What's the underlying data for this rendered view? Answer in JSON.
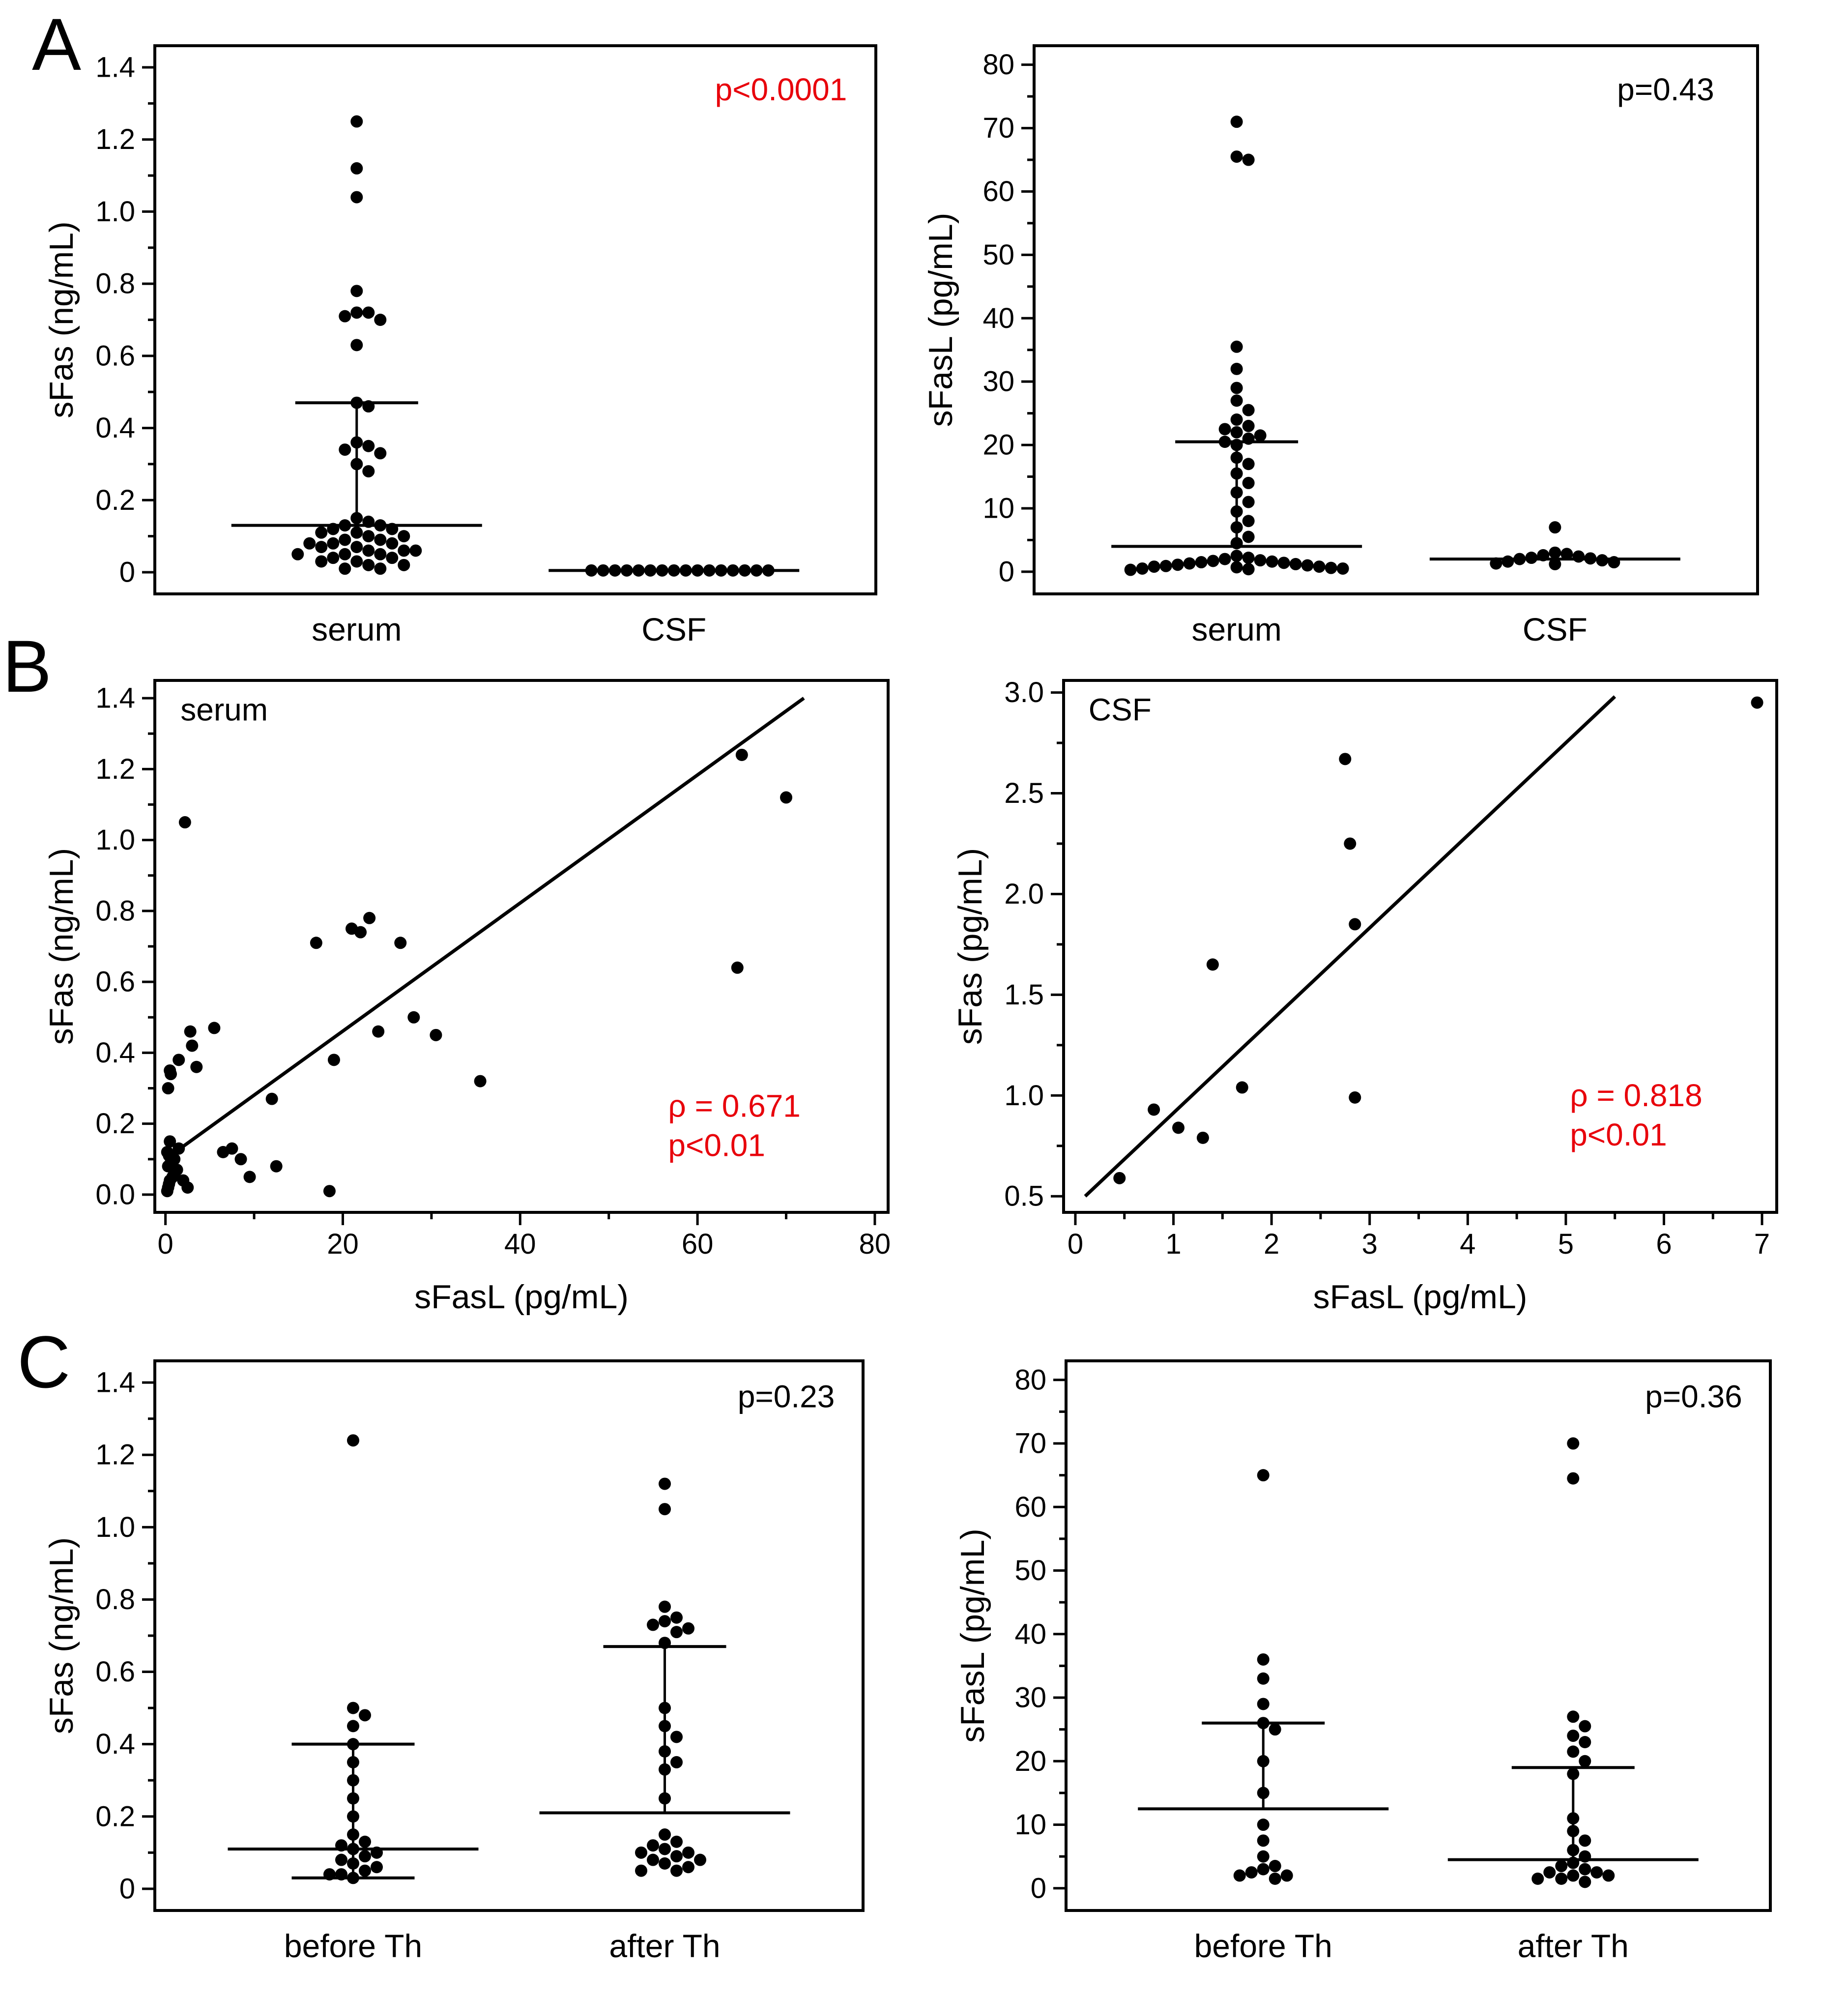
{
  "panel_labels": [
    {
      "text": "A"
    },
    {
      "text": "B"
    },
    {
      "text": "C"
    }
  ],
  "colors": {
    "ink": "#000000",
    "accent_red": "#e8000b"
  },
  "chart_data": [
    {
      "id": "a_left",
      "type": "dot",
      "ylabel": "sFas (ng/mL)",
      "ylim": [
        -0.06,
        1.46
      ],
      "yticks": [
        "0",
        "0.2",
        "0.4",
        "0.6",
        "0.8",
        "1.0",
        "1.2",
        "1.4"
      ],
      "categories": [
        "serum",
        "CSF"
      ],
      "annotation": {
        "lines": [
          "p<0.0001"
        ],
        "color": "#e8000b",
        "fx": 0.96,
        "fy": 0.08,
        "anchor": "end"
      },
      "groups": [
        {
          "name": "serum",
          "values": [
            1.25,
            1.12,
            1.04,
            0.78,
            0.72,
            0.72,
            0.71,
            0.7,
            0.63,
            0.47,
            0.46,
            0.36,
            0.35,
            0.34,
            0.33,
            0.3,
            0.28,
            0.15,
            0.14,
            0.13,
            0.13,
            0.12,
            0.12,
            0.11,
            0.11,
            0.1,
            0.1,
            0.09,
            0.09,
            0.08,
            0.08,
            0.08,
            0.07,
            0.07,
            0.06,
            0.06,
            0.06,
            0.05,
            0.05,
            0.05,
            0.04,
            0.04,
            0.03,
            0.03,
            0.02,
            0.02,
            0.01,
            0.01
          ],
          "mean": 0.13,
          "hi": 0.47,
          "lo": null
        },
        {
          "name": "CSF",
          "values": [
            0.005,
            0.005,
            0.005,
            0.005,
            0.005,
            0.005,
            0.005,
            0.005,
            0.005,
            0.005,
            0.005,
            0.005,
            0.005,
            0.005,
            0.005,
            0.005
          ],
          "mean": 0.005,
          "hi": null,
          "lo": null
        }
      ]
    },
    {
      "id": "a_right",
      "type": "dot",
      "ylabel": "sFasL (pg/mL)",
      "ylim": [
        -3.5,
        83
      ],
      "yticks": [
        "0",
        "10",
        "20",
        "30",
        "40",
        "50",
        "60",
        "70",
        "80"
      ],
      "categories": [
        "serum",
        "CSF"
      ],
      "annotation": {
        "lines": [
          "p=0.43"
        ],
        "color": "#000000",
        "fx": 0.94,
        "fy": 0.08,
        "anchor": "end"
      },
      "groups": [
        {
          "name": "serum",
          "values": [
            71,
            65.5,
            65,
            35.5,
            32,
            29,
            27,
            25.5,
            24,
            23,
            22.5,
            22,
            21.5,
            21,
            20.5,
            20,
            18,
            17,
            15.5,
            14,
            12.5,
            11,
            9.5,
            8,
            7,
            5.5,
            4.5,
            2.5,
            2.2,
            2,
            1.8,
            1.7,
            1.6,
            1.5,
            1.4,
            1.3,
            1.2,
            1.1,
            1,
            0.9,
            0.8,
            0.8,
            0.7,
            0.6,
            0.5,
            0.5,
            0.4,
            0.3
          ],
          "mean": 4,
          "hi": 20.5,
          "lo": null
        },
        {
          "name": "CSF",
          "values": [
            7,
            3,
            2.8,
            2.6,
            2.4,
            2.2,
            2.1,
            2,
            1.8,
            1.6,
            1.5,
            1.3,
            1.2
          ],
          "mean": 2,
          "hi": null,
          "lo": null
        }
      ]
    },
    {
      "id": "b_left",
      "type": "scatter",
      "inlabel": {
        "text": "serum",
        "fx": 0.035,
        "fy": 0.055
      },
      "ylabel": "sFas (ng/mL)",
      "xlabel": "sFasL (pg/mL)",
      "ylim": [
        -0.05,
        1.45
      ],
      "xlim": [
        -1.2,
        81.5
      ],
      "yticks": [
        "0.0",
        "0.2",
        "0.4",
        "0.6",
        "0.8",
        "1.0",
        "1.2",
        "1.4"
      ],
      "xticks": [
        "0",
        "20",
        "40",
        "60",
        "80"
      ],
      "annotation": {
        "lines": [
          "ρ = 0.671",
          "p<0.01"
        ],
        "color": "#e8000b",
        "fx": 0.7,
        "fy": 0.8,
        "anchor": "start"
      },
      "points": [
        [
          0.2,
          0.01
        ],
        [
          0.3,
          0.02
        ],
        [
          0.4,
          0.03
        ],
        [
          0.5,
          0.04
        ],
        [
          0.8,
          0.05
        ],
        [
          1,
          0.06
        ],
        [
          1.3,
          0.07
        ],
        [
          0.3,
          0.08
        ],
        [
          0.6,
          0.09
        ],
        [
          1,
          0.1
        ],
        [
          0.4,
          0.11
        ],
        [
          0.2,
          0.12
        ],
        [
          1.5,
          0.13
        ],
        [
          0.5,
          0.15
        ],
        [
          2,
          0.04
        ],
        [
          2.5,
          0.02
        ],
        [
          0.3,
          0.3
        ],
        [
          0.5,
          0.35
        ],
        [
          0.6,
          0.34
        ],
        [
          1.5,
          0.38
        ],
        [
          2.2,
          1.05
        ],
        [
          3,
          0.42
        ],
        [
          3.5,
          0.36
        ],
        [
          2.8,
          0.46
        ],
        [
          5.5,
          0.47
        ],
        [
          6.5,
          0.12
        ],
        [
          7.5,
          0.13
        ],
        [
          8.5,
          0.1
        ],
        [
          9.5,
          0.05
        ],
        [
          12,
          0.27
        ],
        [
          12.5,
          0.08
        ],
        [
          17,
          0.71
        ],
        [
          18.5,
          0.01
        ],
        [
          19,
          0.38
        ],
        [
          21,
          0.75
        ],
        [
          22,
          0.74
        ],
        [
          23,
          0.78
        ],
        [
          24,
          0.46
        ],
        [
          26.5,
          0.71
        ],
        [
          28,
          0.5
        ],
        [
          30.5,
          0.45
        ],
        [
          35.5,
          0.32
        ],
        [
          64.5,
          0.64
        ],
        [
          65,
          1.24
        ],
        [
          70,
          1.12
        ]
      ],
      "regression": {
        "x1": 0,
        "y1": 0.1,
        "x2": 72,
        "y2": 1.4
      }
    },
    {
      "id": "b_right",
      "type": "scatter",
      "inlabel": {
        "text": "CSF",
        "fx": 0.035,
        "fy": 0.055
      },
      "ylabel": "sFas (pg/mL)",
      "xlabel": "sFasL (pg/mL)",
      "ylim": [
        0.42,
        3.06
      ],
      "xlim": [
        -0.12,
        7.15
      ],
      "yticks": [
        "0.5",
        "1.0",
        "1.5",
        "2.0",
        "2.5",
        "3.0"
      ],
      "xticks": [
        "0",
        "1",
        "2",
        "3",
        "4",
        "5",
        "6",
        "7"
      ],
      "annotation": {
        "lines": [
          "ρ = 0.818",
          "p<0.01"
        ],
        "color": "#e8000b",
        "fx": 0.71,
        "fy": 0.78,
        "anchor": "start"
      },
      "points": [
        [
          0.45,
          0.59
        ],
        [
          0.8,
          0.93
        ],
        [
          1.05,
          0.84
        ],
        [
          1.3,
          0.79
        ],
        [
          1.4,
          1.65
        ],
        [
          1.7,
          1.04
        ],
        [
          2.75,
          2.67
        ],
        [
          2.8,
          2.25
        ],
        [
          2.85,
          1.85
        ],
        [
          2.85,
          0.99
        ],
        [
          6.95,
          2.95
        ]
      ],
      "regression": {
        "x1": 0.1,
        "y1": 0.5,
        "x2": 5.5,
        "y2": 2.98
      }
    },
    {
      "id": "c_left",
      "type": "dot",
      "ylabel": "sFas (ng/mL)",
      "ylim": [
        -0.06,
        1.46
      ],
      "yticks": [
        "0",
        "0.2",
        "0.4",
        "0.6",
        "0.8",
        "1.0",
        "1.2",
        "1.4"
      ],
      "categories": [
        "before Th",
        "after Th"
      ],
      "annotation": {
        "lines": [
          "p=0.23"
        ],
        "color": "#000000",
        "fx": 0.96,
        "fy": 0.065,
        "anchor": "end"
      },
      "groups": [
        {
          "name": "before Th",
          "values": [
            1.24,
            0.5,
            0.48,
            0.45,
            0.4,
            0.35,
            0.3,
            0.25,
            0.2,
            0.15,
            0.13,
            0.12,
            0.11,
            0.1,
            0.09,
            0.08,
            0.07,
            0.06,
            0.05,
            0.04,
            0.04,
            0.03
          ],
          "mean": 0.11,
          "hi": 0.4,
          "lo": 0.03
        },
        {
          "name": "after Th",
          "values": [
            1.12,
            1.05,
            0.78,
            0.75,
            0.74,
            0.73,
            0.72,
            0.71,
            0.68,
            0.5,
            0.45,
            0.42,
            0.38,
            0.35,
            0.33,
            0.25,
            0.15,
            0.13,
            0.12,
            0.11,
            0.1,
            0.1,
            0.09,
            0.08,
            0.08,
            0.07,
            0.06,
            0.05,
            0.05
          ],
          "mean": 0.21,
          "hi": 0.67,
          "lo": null
        }
      ]
    },
    {
      "id": "c_right",
      "type": "dot",
      "ylabel": "sFasL (pg/mL)",
      "ylim": [
        -3.5,
        83
      ],
      "yticks": [
        "0",
        "10",
        "20",
        "30",
        "40",
        "50",
        "60",
        "70",
        "80"
      ],
      "categories": [
        "before Th",
        "after Th"
      ],
      "annotation": {
        "lines": [
          "p=0.36"
        ],
        "color": "#000000",
        "fx": 0.96,
        "fy": 0.065,
        "anchor": "end"
      },
      "groups": [
        {
          "name": "before Th",
          "values": [
            65,
            36,
            33,
            29,
            26,
            25,
            20,
            15,
            10,
            7.5,
            5,
            3.5,
            3,
            2.5,
            2,
            2,
            1.5
          ],
          "mean": 12.5,
          "hi": 26,
          "lo": null
        },
        {
          "name": "after Th",
          "values": [
            70,
            64.5,
            27,
            25.5,
            24,
            23,
            21.5,
            20,
            18,
            11,
            9,
            7.5,
            6,
            5,
            4,
            3.5,
            3,
            2.5,
            2.5,
            2,
            2,
            1.5,
            1.5,
            1
          ],
          "mean": 4.5,
          "hi": 19,
          "lo": null
        }
      ]
    }
  ]
}
